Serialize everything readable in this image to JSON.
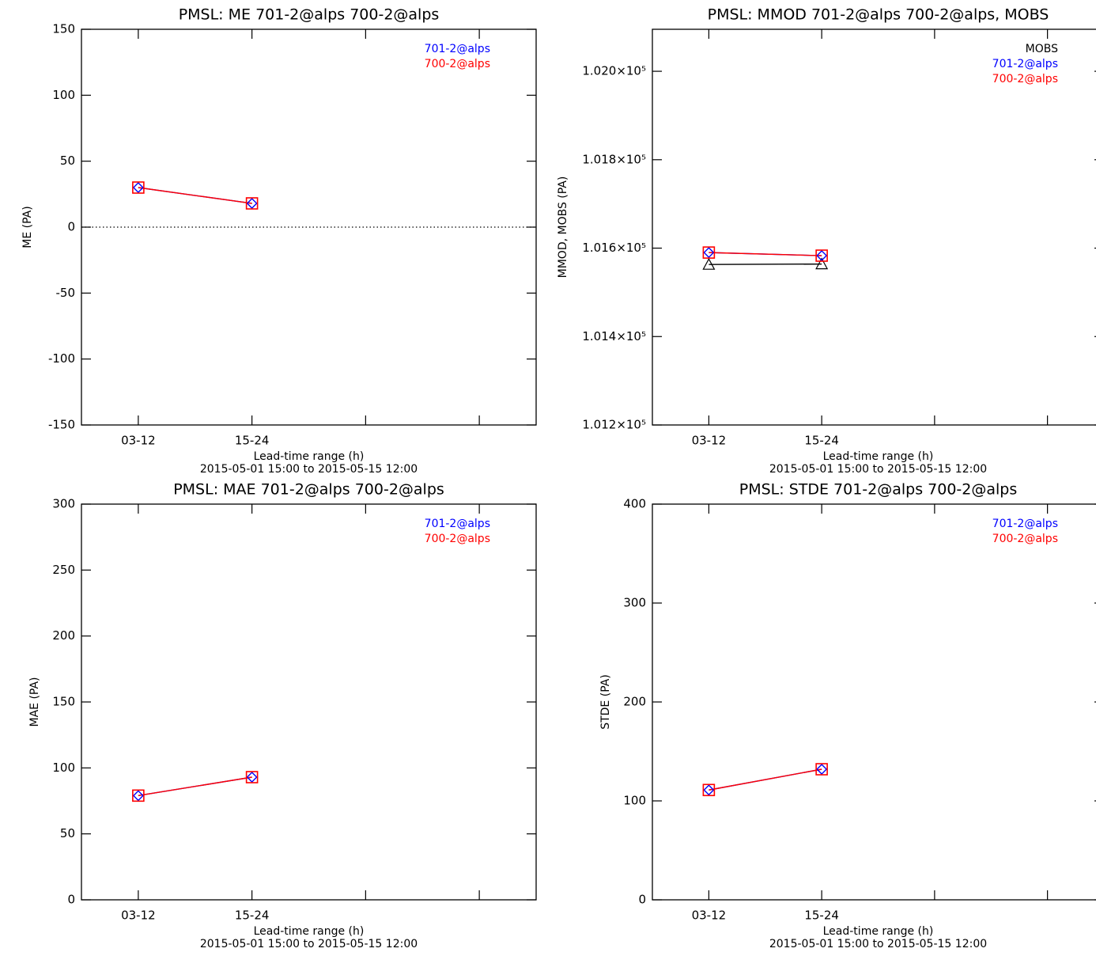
{
  "chart_data": [
    {
      "type": "line",
      "title": "PMSL: ME 701-2@alps 700-2@alps",
      "ylabel": "ME (PA)",
      "xlabel": "Lead-time range (h)",
      "subtitle": "2015-05-01 15:00 to 2015-05-15 12:00",
      "categories": [
        "03-12",
        "15-24",
        null,
        null
      ],
      "series": [
        {
          "name": "701-2@alps",
          "color": "#0000ff",
          "marker": "diamond",
          "values": [
            30,
            18,
            null,
            null
          ]
        },
        {
          "name": "700-2@alps",
          "color": "#ff0000",
          "marker": "square",
          "values": [
            30,
            18,
            null,
            null
          ]
        }
      ],
      "ylim": [
        -150,
        150
      ],
      "yticks": [
        -150,
        -100,
        -50,
        0,
        50,
        100,
        150
      ],
      "zero_line": true
    },
    {
      "type": "line",
      "title": "PMSL: MMOD 701-2@alps 700-2@alps, MOBS",
      "ylabel": "MMOD, MOBS (PA)",
      "xlabel": "Lead-time range (h)",
      "subtitle": "2015-05-01 15:00 to 2015-05-15 12:00",
      "categories": [
        "03-12",
        "15-24",
        null,
        null
      ],
      "series": [
        {
          "name": "MOBS",
          "color": "#000000",
          "marker": "triangle",
          "values": [
            101563,
            101564,
            null,
            null
          ]
        },
        {
          "name": "701-2@alps",
          "color": "#0000ff",
          "marker": "diamond",
          "values": [
            101590,
            101583,
            null,
            null
          ]
        },
        {
          "name": "700-2@alps",
          "color": "#ff0000",
          "marker": "square",
          "values": [
            101590,
            101583,
            null,
            null
          ]
        }
      ],
      "ylim": [
        101200,
        102095
      ],
      "yticks": [
        {
          "value": 101200,
          "label": "1.012×10⁵"
        },
        {
          "value": 101400,
          "label": "1.014×10⁵"
        },
        {
          "value": 101600,
          "label": "1.016×10⁵"
        },
        {
          "value": 101800,
          "label": "1.018×10⁵"
        },
        {
          "value": 102000,
          "label": "1.020×10⁵"
        }
      ],
      "zero_line": false
    },
    {
      "type": "line",
      "title": "PMSL: MAE 701-2@alps 700-2@alps",
      "ylabel": "MAE (PA)",
      "xlabel": "Lead-time range (h)",
      "subtitle": "2015-05-01 15:00 to 2015-05-15 12:00",
      "categories": [
        "03-12",
        "15-24",
        null,
        null
      ],
      "series": [
        {
          "name": "701-2@alps",
          "color": "#0000ff",
          "marker": "diamond",
          "values": [
            79,
            93,
            null,
            null
          ]
        },
        {
          "name": "700-2@alps",
          "color": "#ff0000",
          "marker": "square",
          "values": [
            79,
            93,
            null,
            null
          ]
        }
      ],
      "ylim": [
        0,
        300
      ],
      "yticks": [
        0,
        50,
        100,
        150,
        200,
        250,
        300
      ],
      "zero_line": false
    },
    {
      "type": "line",
      "title": "PMSL: STDE 701-2@alps 700-2@alps",
      "ylabel": "STDE (PA)",
      "xlabel": "Lead-time range (h)",
      "subtitle": "2015-05-01 15:00 to 2015-05-15 12:00",
      "categories": [
        "03-12",
        "15-24",
        null,
        null
      ],
      "series": [
        {
          "name": "701-2@alps",
          "color": "#0000ff",
          "marker": "diamond",
          "values": [
            111,
            132,
            null,
            null
          ]
        },
        {
          "name": "700-2@alps",
          "color": "#ff0000",
          "marker": "square",
          "values": [
            111,
            132,
            null,
            null
          ]
        }
      ],
      "ylim": [
        0,
        400
      ],
      "yticks": [
        0,
        100,
        200,
        300,
        400
      ],
      "zero_line": false
    }
  ]
}
